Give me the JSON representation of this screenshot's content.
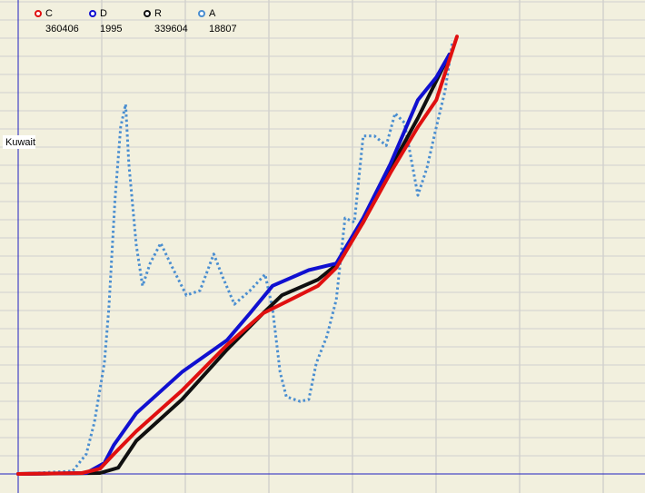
{
  "chart_data": {
    "type": "line",
    "annotation": "Kuwait",
    "xlim": [
      0,
      100
    ],
    "ylim": [
      0,
      100
    ],
    "series": [
      {
        "name": "C",
        "total": 360406,
        "color": "#e01010",
        "style": "solid",
        "x": [
          0,
          10.2,
          13.1,
          15.3,
          18.9,
          26.2,
          33.4,
          39.2,
          43.6,
          47.96,
          50.9,
          55.2,
          59.6,
          63.95,
          66.9,
          70.2
        ],
        "values": [
          0,
          0.2,
          1.1,
          4.2,
          9,
          17.6,
          27.2,
          33.9,
          36.8,
          39.7,
          43.5,
          53.1,
          63.6,
          73.2,
          78.9,
          92.3
        ]
      },
      {
        "name": "D",
        "total": 1995,
        "color": "#1010d0",
        "style": "solid",
        "x": [
          0,
          10.9,
          13.8,
          15.3,
          18.9,
          26.2,
          33.4,
          37.1,
          40.7,
          46.5,
          50.9,
          55.2,
          59.6,
          63.95,
          66.9,
          69.0
        ],
        "values": [
          0,
          0.2,
          2.3,
          6.1,
          12.8,
          21.5,
          28.2,
          33.9,
          39.7,
          43.0,
          44.4,
          54.0,
          65.5,
          78.9,
          83.7,
          88.5
        ]
      },
      {
        "name": "R",
        "total": 339604,
        "color": "#101010",
        "style": "solid",
        "x": [
          0,
          13.1,
          16.0,
          18.9,
          26.2,
          33.4,
          39.2,
          42.2,
          47.96,
          50.9,
          55.2,
          59.6,
          63.95,
          69.0
        ],
        "values": [
          0,
          0.2,
          1.3,
          7.0,
          15.7,
          26.2,
          33.9,
          37.7,
          41.0,
          44.1,
          53.1,
          64.6,
          75.1,
          88.5
        ]
      },
      {
        "name": "A",
        "total": 18807,
        "color": "#4a8ed0",
        "style": "dotted",
        "x": [
          0,
          8.7,
          10.9,
          12.2,
          13.8,
          14.5,
          15.5,
          16.4,
          17.2,
          17.7,
          18.9,
          19.9,
          21.1,
          22.8,
          24.7,
          26.9,
          29.1,
          31.3,
          32.7,
          34.6,
          37.1,
          39.5,
          40.7,
          41.9,
          42.9,
          45.1,
          46.5,
          47.7,
          49.4,
          50.9,
          52.3,
          53.8,
          55.2,
          57.0,
          58.9,
          60.3,
          61.8,
          63.95,
          65.4,
          66.9,
          68.3,
          69.5
        ],
        "values": [
          0,
          0.6,
          4.2,
          10.9,
          23.4,
          34.9,
          57.9,
          73.2,
          78.0,
          65.5,
          48.3,
          39.7,
          44.4,
          48.7,
          43.5,
          37.7,
          38.7,
          46.4,
          41.6,
          35.8,
          38.7,
          42.1,
          34.9,
          21.5,
          16.3,
          15.3,
          15.7,
          23.4,
          29.1,
          36.8,
          54.0,
          53.1,
          71.3,
          71.3,
          69.3,
          76.1,
          74.1,
          58.8,
          64.6,
          73.2,
          80.8,
          91.4
        ]
      }
    ]
  }
}
